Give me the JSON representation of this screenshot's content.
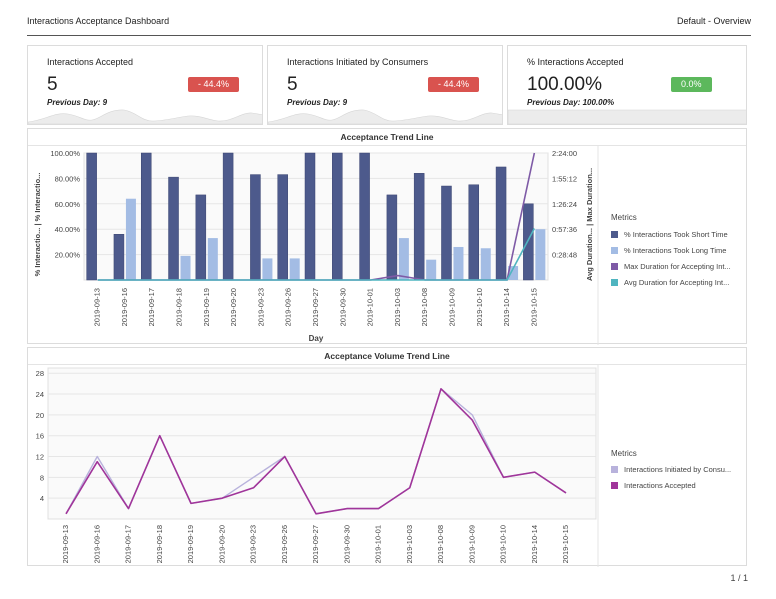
{
  "header": {
    "title": "Interactions Acceptance Dashboard",
    "right": "Default  -  Overview"
  },
  "kpis": [
    {
      "title": "Interactions Accepted",
      "value": "5",
      "badge": "- 44.4%",
      "badge_color": "#d9534f",
      "previous": "Previous Day: 9"
    },
    {
      "title": "Interactions Initiated by Consumers",
      "value": "5",
      "badge": "- 44.4%",
      "badge_color": "#d9534f",
      "previous": "Previous Day: 9"
    },
    {
      "title": "% Interactions Accepted",
      "value": "100.00%",
      "badge": "0.0%",
      "badge_color": "#5cb85c",
      "previous": "Previous Day: 100.00%"
    }
  ],
  "chart_data": [
    {
      "type": "bar",
      "title": "Acceptance Trend Line",
      "xlabel": "Day",
      "ylabel_left": [
        "% Interactio...",
        "|",
        "% Interactio..."
      ],
      "ylabel_right": [
        "Avg Duration...",
        "|",
        "Max Duration..."
      ],
      "categories": [
        "2019-09-13",
        "2019-09-16",
        "2019-09-17",
        "2019-09-18",
        "2019-09-19",
        "2019-09-20",
        "2019-09-23",
        "2019-09-26",
        "2019-09-27",
        "2019-09-30",
        "2019-10-01",
        "2019-10-03",
        "2019-10-08",
        "2019-10-09",
        "2019-10-10",
        "2019-10-14",
        "2019-10-15"
      ],
      "y_ticks_left": [
        "20.00%",
        "40.00%",
        "60.00%",
        "80.00%",
        "100.00%"
      ],
      "ylim_left": [
        0,
        100
      ],
      "y_ticks_right": [
        "0:28:48",
        "0:57:36",
        "1:26:24",
        "1:55:12",
        "2:24:00"
      ],
      "ylim_right_seconds": [
        0,
        8640
      ],
      "grid": true,
      "legend_title": "Metrics",
      "legend_position": "right",
      "series": [
        {
          "name": "% Interactions Took Short Time",
          "kind": "bar",
          "color": "#4d5a8c",
          "values": [
            100,
            36,
            100,
            81,
            67,
            100,
            83,
            83,
            100,
            100,
            100,
            67,
            84,
            74,
            75,
            89,
            60
          ]
        },
        {
          "name": "% Interactions Took Long Time",
          "kind": "bar",
          "color": "#a3bce4",
          "values": [
            0,
            64,
            0,
            19,
            33,
            0,
            17,
            17,
            0,
            0,
            0,
            33,
            16,
            26,
            25,
            11,
            40
          ]
        },
        {
          "name": "Max Duration for Accepting Int...",
          "kind": "line",
          "color": "#7e5aa6",
          "values_seconds": [
            0,
            0,
            0,
            0,
            0,
            0,
            0,
            0,
            0,
            0,
            0,
            300,
            0,
            0,
            0,
            0,
            8640
          ]
        },
        {
          "name": "Avg Duration for Accepting Int...",
          "kind": "line",
          "color": "#4fb5c0",
          "values_seconds": [
            0,
            0,
            0,
            0,
            0,
            0,
            0,
            0,
            0,
            0,
            0,
            0,
            0,
            0,
            0,
            0,
            3500
          ]
        }
      ]
    },
    {
      "type": "line",
      "title": "Acceptance Volume Trend Line",
      "categories": [
        "2019-09-13",
        "2019-09-16",
        "2019-09-17",
        "2019-09-18",
        "2019-09-19",
        "2019-09-20",
        "2019-09-23",
        "2019-09-26",
        "2019-09-27",
        "2019-09-30",
        "2019-10-01",
        "2019-10-03",
        "2019-10-08",
        "2019-10-09",
        "2019-10-10",
        "2019-10-14",
        "2019-10-15"
      ],
      "y_ticks": [
        4,
        8,
        12,
        16,
        20,
        24,
        28
      ],
      "ylim": [
        0,
        29
      ],
      "grid": true,
      "legend_title": "Metrics",
      "legend_position": "right",
      "series": [
        {
          "name": "Interactions Initiated by Consu...",
          "color": "#b8b2dc",
          "values": [
            1,
            12,
            2,
            16,
            3,
            4,
            8,
            12,
            1,
            2,
            2,
            6,
            25,
            20,
            8,
            9,
            5
          ]
        },
        {
          "name": "Interactions Accepted",
          "color": "#a0359a",
          "values": [
            1,
            11,
            2,
            16,
            3,
            4,
            6,
            12,
            1,
            2,
            2,
            6,
            25,
            19,
            8,
            9,
            5
          ]
        }
      ]
    }
  ],
  "pager": "1 / 1"
}
